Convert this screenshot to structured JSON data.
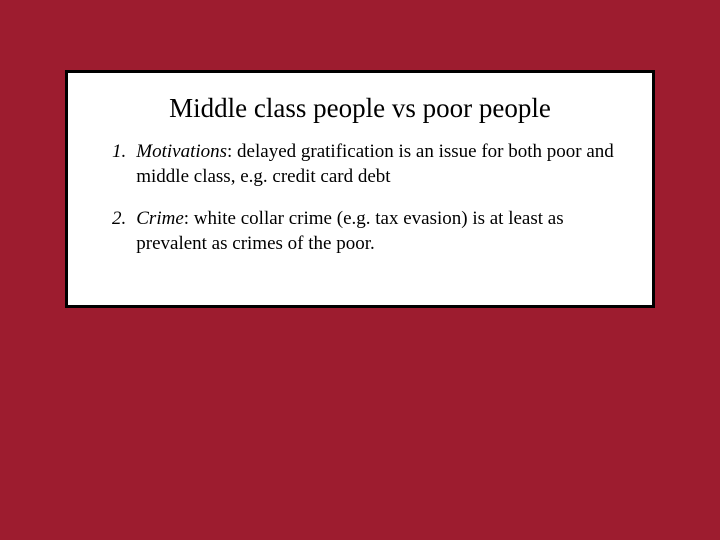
{
  "slide": {
    "title": "Middle class people vs poor people",
    "background_color": "#9d1c2f",
    "box_background": "#ffffff",
    "box_border_color": "#000000",
    "text_color": "#000000",
    "title_fontsize": 27,
    "body_fontsize": 19,
    "font_family": "Times New Roman",
    "items": [
      {
        "number": "1.",
        "term": "Motivations",
        "text": ": delayed gratification is an issue for both poor and middle class, e.g. credit card debt"
      },
      {
        "number": "2.",
        "term": "Crime",
        "text": ": white collar crime (e.g. tax evasion) is at least as prevalent as crimes of the poor."
      }
    ]
  }
}
